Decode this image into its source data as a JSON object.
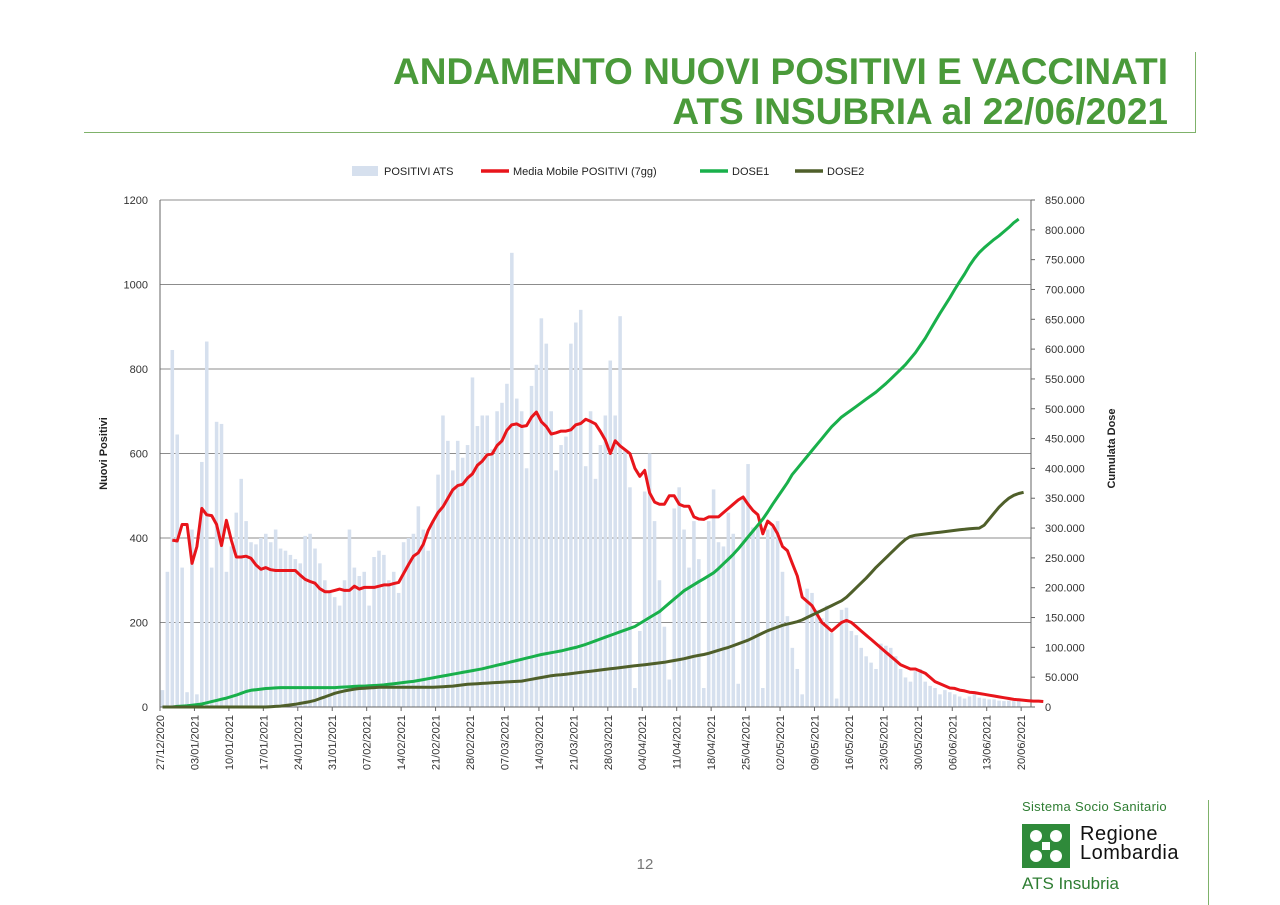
{
  "slide": {
    "title_line1": "ANDAMENTO NUOVI POSITIVI E VACCINATI",
    "title_line2": "ATS INSUBRIA al 22/06/2021",
    "page_number": "12",
    "logo_top": "Sistema Socio Sanitario",
    "logo_name_1": "Regione",
    "logo_name_2": "Lombardia",
    "logo_bottom": "ATS Insubria"
  },
  "colors": {
    "title": "#4a9a3a",
    "bars": "#d6e0ee",
    "moving_avg": "#e8151b",
    "dose1": "#19b04b",
    "dose2": "#4f5f2a",
    "logo_green": "#2f8a3a"
  },
  "chart_data": {
    "type": "bar+line",
    "x_start": "27/12/2020",
    "x_end": "22/06/2021",
    "x_tick_labels": [
      "27/12/2020",
      "03/01/2021",
      "10/01/2021",
      "17/01/2021",
      "24/01/2021",
      "31/01/2021",
      "07/02/2021",
      "14/02/2021",
      "21/02/2021",
      "28/02/2021",
      "07/03/2021",
      "14/03/2021",
      "21/03/2021",
      "28/03/2021",
      "04/04/2021",
      "11/04/2021",
      "18/04/2021",
      "25/04/2021",
      "02/05/2021",
      "09/05/2021",
      "16/05/2021",
      "23/05/2021",
      "30/05/2021",
      "06/06/2021",
      "13/06/2021",
      "20/06/2021"
    ],
    "y_left": {
      "label": "Nuovi Positivi",
      "range": [
        0,
        1200
      ],
      "ticks": [
        "0",
        "200",
        "400",
        "600",
        "800",
        "1000",
        "1200"
      ]
    },
    "y_right": {
      "label": "Cumulata Dose",
      "range": [
        0,
        850000
      ],
      "ticks": [
        "0",
        "50.000",
        "100.000",
        "150.000",
        "200.000",
        "250.000",
        "300.000",
        "350.000",
        "400.000",
        "450.000",
        "500.000",
        "550.000",
        "600.000",
        "650.000",
        "700.000",
        "750.000",
        "800.000",
        "850.000"
      ]
    },
    "grid": "horizontal",
    "legend_position": "top",
    "legend": [
      "POSITIVI ATS",
      "Media Mobile POSITIVI (7gg)",
      "DOSE1",
      "DOSE2"
    ],
    "series": [
      {
        "name": "POSITIVI ATS",
        "type": "bar",
        "axis": "left",
        "start_date": "27/12/2020",
        "values": [
          40,
          320,
          845,
          645,
          330,
          35,
          420,
          30,
          580,
          865,
          330,
          675,
          670,
          320,
          380,
          460,
          540,
          440,
          390,
          385,
          400,
          410,
          390,
          420,
          375,
          370,
          360,
          350,
          340,
          405,
          410,
          375,
          340,
          300,
          270,
          260,
          240,
          300,
          420,
          330,
          310,
          320,
          240,
          355,
          370,
          360,
          300,
          320,
          270,
          390,
          400,
          410,
          475,
          420,
          370,
          440,
          550,
          690,
          630,
          560,
          630,
          590,
          620,
          780,
          665,
          690,
          690,
          610,
          700,
          720,
          765,
          1075,
          730,
          700,
          565,
          760,
          810,
          920,
          860,
          700,
          560,
          620,
          640,
          860,
          910,
          940,
          570,
          700,
          540,
          620,
          690,
          820,
          690,
          925,
          610,
          520,
          45,
          180,
          510,
          600,
          440,
          300,
          190,
          65,
          470,
          520,
          420,
          330,
          440,
          350,
          45,
          440,
          515,
          390,
          380,
          460,
          410,
          55,
          490,
          575,
          425,
          430,
          45,
          420,
          425,
          440,
          320,
          215,
          140,
          90,
          30,
          280,
          270,
          230,
          210,
          240,
          175,
          20,
          230,
          235,
          180,
          170,
          140,
          120,
          105,
          90,
          150,
          145,
          140,
          120,
          90,
          70,
          60,
          85,
          90,
          60,
          50,
          45,
          30,
          40,
          35,
          30,
          25,
          20,
          25,
          30,
          22,
          20,
          18,
          18,
          15,
          14,
          15,
          14,
          15
        ]
      },
      {
        "name": "Media Mobile POSITIVI (7gg)",
        "type": "line",
        "axis": "left",
        "start_date": "29/12/2020",
        "values": [
          395,
          393,
          432,
          432,
          340,
          380,
          470,
          455,
          453,
          432,
          382,
          442,
          394,
          355,
          355,
          357,
          352,
          336,
          326,
          330,
          325,
          323,
          323,
          323,
          323,
          323,
          312,
          302,
          297,
          293,
          280,
          273,
          273,
          276,
          279,
          276,
          276,
          286,
          279,
          283,
          283,
          283,
          286,
          289,
          289,
          292,
          295,
          316,
          337,
          357,
          365,
          385,
          418,
          440,
          460,
          474,
          494,
          514,
          524,
          527,
          542,
          552,
          572,
          582,
          597,
          599,
          619,
          630,
          655,
          668,
          670,
          664,
          666,
          686,
          698,
          675,
          664,
          646,
          649,
          653,
          653,
          656,
          668,
          671,
          681,
          676,
          670,
          652,
          632,
          600,
          630,
          618,
          609,
          600,
          565,
          546,
          560,
          507,
          485,
          480,
          480,
          500,
          500,
          480,
          475,
          475,
          450,
          445,
          444,
          450,
          450,
          450,
          460,
          470,
          480,
          490,
          497,
          480,
          465,
          455,
          410,
          440,
          430,
          410,
          380,
          370,
          340,
          310,
          260,
          250,
          240,
          220,
          200,
          190,
          180,
          190,
          200,
          205,
          200,
          190,
          180,
          170,
          160,
          150,
          140,
          130,
          120,
          110,
          100,
          95,
          90,
          90,
          85,
          80,
          70,
          60,
          55,
          50,
          45,
          44,
          40,
          38,
          35,
          34,
          32,
          30,
          28,
          26,
          24,
          22,
          20,
          18,
          17,
          16,
          15,
          14,
          14,
          13
        ]
      },
      {
        "name": "DOSE1",
        "type": "line",
        "axis": "right",
        "start_date": "27/12/2020",
        "values": [
          0,
          0,
          0,
          1000,
          1500,
          2000,
          3000,
          4000,
          5000,
          7000,
          9000,
          11000,
          13000,
          15000,
          17500,
          20000,
          23000,
          26000,
          28000,
          29000,
          30000,
          31000,
          31500,
          32000,
          32500,
          32500,
          32500,
          32500,
          32500,
          32500,
          32500,
          32500,
          32500,
          32500,
          32500,
          32500,
          33000,
          33500,
          34000,
          34500,
          35000,
          35000,
          35500,
          36000,
          36500,
          37000,
          38000,
          39000,
          40000,
          41000,
          42000,
          43000,
          44500,
          46000,
          47500,
          49000,
          50500,
          52000,
          53500,
          55000,
          56500,
          58000,
          59500,
          61000,
          62500,
          64000,
          66000,
          68000,
          70000,
          72000,
          74000,
          76000,
          78000,
          80000,
          82000,
          84000,
          86000,
          88000,
          89500,
          91000,
          92500,
          94000,
          96000,
          98000,
          100000,
          102500,
          105000,
          108000,
          111000,
          114000,
          117000,
          120000,
          123000,
          126000,
          129000,
          132000,
          135000,
          140000,
          145000,
          150000,
          155000,
          160000,
          167000,
          174000,
          181000,
          188000,
          195000,
          200000,
          205000,
          210000,
          215000,
          220000,
          225000,
          232000,
          240000,
          248000,
          256000,
          265000,
          275000,
          285000,
          295000,
          305000,
          315000,
          327000,
          340000,
          352000,
          364000,
          376000,
          390000,
          400000,
          410000,
          420000,
          430000,
          440000,
          450000,
          460000,
          470000,
          478000,
          486000,
          492000,
          498000,
          504000,
          510000,
          516000,
          522000,
          528000,
          535000,
          542000,
          550000,
          558000,
          566000,
          574000,
          584000,
          594000,
          606000,
          618000,
          632000,
          646000,
          660000,
          673000,
          686000,
          700000,
          713000,
          726000,
          740000,
          752000,
          762000,
          770000,
          777000,
          784000,
          790000,
          797000,
          804000,
          812000,
          818000
        ]
      },
      {
        "name": "DOSE2",
        "type": "line",
        "axis": "right",
        "start_date": "27/12/2020",
        "values": [
          0,
          0,
          0,
          0,
          0,
          0,
          0,
          0,
          0,
          0,
          0,
          0,
          0,
          0,
          0,
          0,
          0,
          0,
          0,
          0,
          0,
          0,
          500,
          1000,
          1500,
          2500,
          3500,
          4500,
          6000,
          7500,
          9000,
          11000,
          14000,
          17000,
          20000,
          23000,
          25000,
          27000,
          28500,
          30000,
          31000,
          31500,
          32000,
          32500,
          33000,
          33000,
          33000,
          33000,
          33000,
          33000,
          33000,
          33000,
          33000,
          33000,
          33000,
          33000,
          33500,
          34000,
          34500,
          35000,
          36000,
          37000,
          38000,
          38500,
          39000,
          39500,
          40000,
          40500,
          41000,
          41500,
          42000,
          42500,
          43000,
          43500,
          45000,
          46500,
          48000,
          49500,
          51000,
          52500,
          53500,
          54000,
          55000,
          56000,
          57000,
          58000,
          59000,
          60000,
          61000,
          62000,
          63000,
          64000,
          65000,
          66000,
          67000,
          68000,
          69000,
          70000,
          71000,
          72000,
          73000,
          74000,
          75000,
          76500,
          78000,
          79500,
          81000,
          83000,
          85000,
          86500,
          88000,
          90000,
          92500,
          95000,
          97500,
          100000,
          103000,
          106000,
          109000,
          112000,
          116000,
          120000,
          124000,
          128000,
          131000,
          134000,
          137000,
          139000,
          141000,
          143000,
          146000,
          150000,
          154000,
          158000,
          162000,
          166000,
          170000,
          174000,
          178000,
          184000,
          192000,
          200000,
          208000,
          216000,
          225000,
          234000,
          242000,
          250000,
          258000,
          266000,
          274000,
          281000,
          286000,
          288000,
          289000,
          290000,
          291000,
          292000,
          293000,
          294000,
          295000,
          296000,
          297000,
          298000,
          299000,
          299500,
          300000,
          305000,
          315000,
          325000,
          335000,
          343000,
          350000,
          355000,
          358000,
          360000
        ]
      }
    ]
  }
}
